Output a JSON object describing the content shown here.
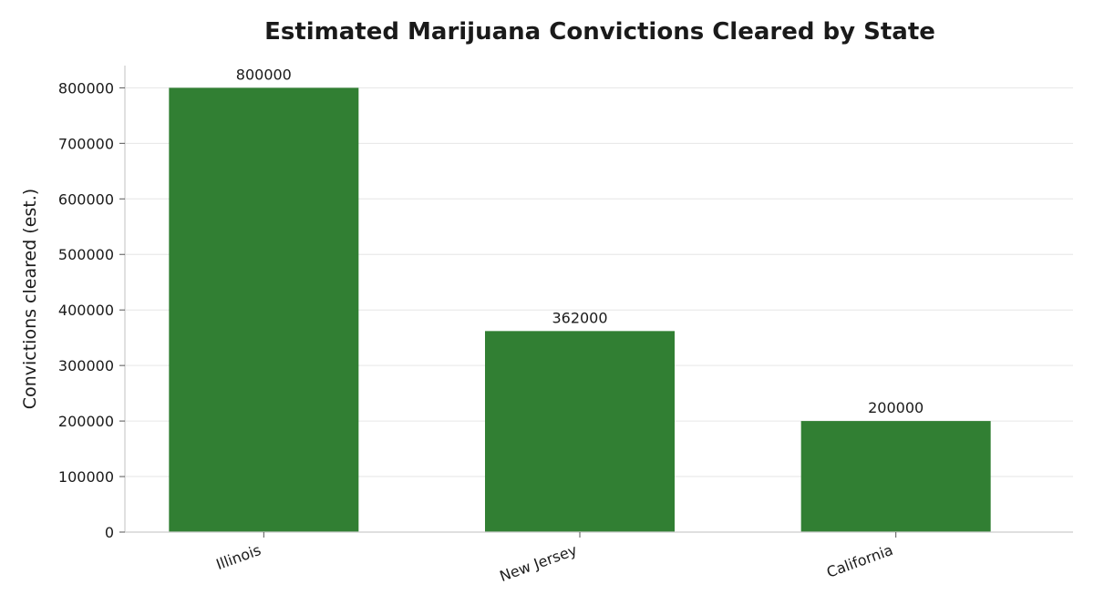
{
  "chart_data": {
    "type": "bar",
    "title": "Estimated Marijuana Convictions Cleared by State",
    "xlabel": "",
    "ylabel": "Convictions cleared (est.)",
    "categories": [
      "Illinois",
      "New Jersey",
      "California"
    ],
    "values": [
      800000,
      362000,
      200000
    ],
    "data_labels": [
      "800000",
      "362000",
      "200000"
    ],
    "ylim": [
      0,
      840000
    ],
    "yticks": [
      0,
      100000,
      200000,
      300000,
      400000,
      500000,
      600000,
      700000,
      800000
    ],
    "ytick_labels": [
      "0",
      "100000",
      "200000",
      "300000",
      "400000",
      "500000",
      "600000",
      "700000",
      "800000"
    ],
    "grid": true,
    "bar_color": "#317f33",
    "grid_color": "#e6e6e6",
    "axis_color": "#cccccc"
  }
}
